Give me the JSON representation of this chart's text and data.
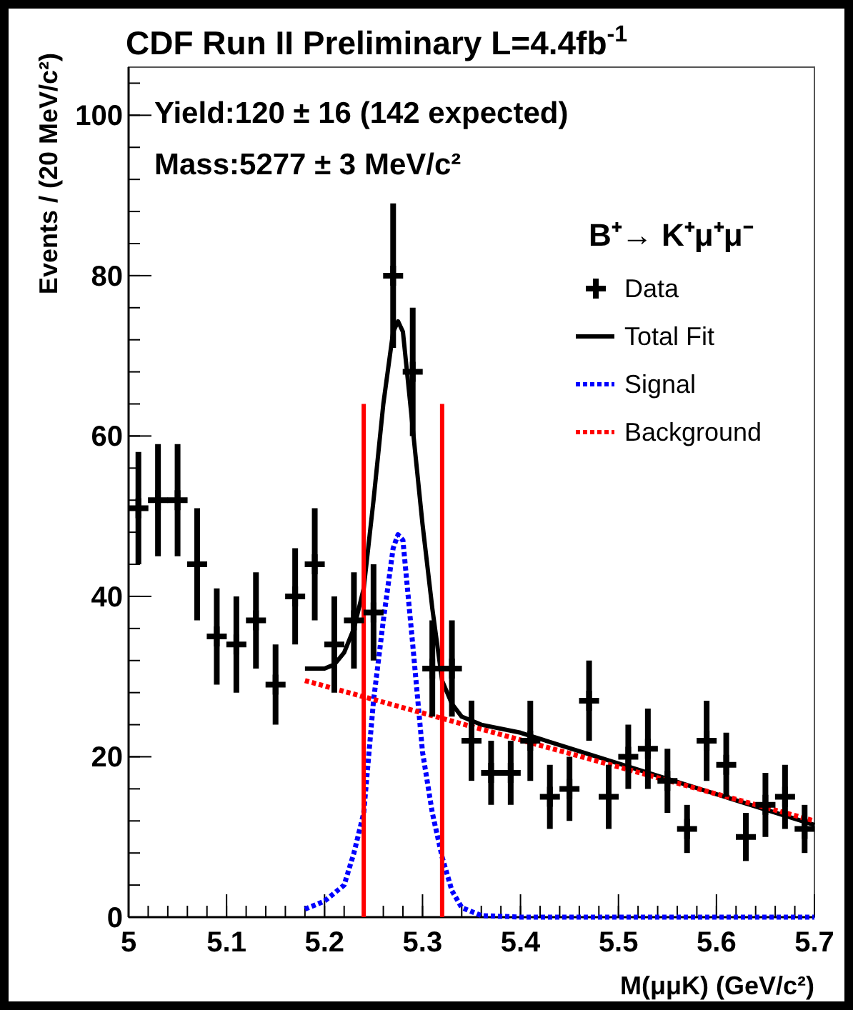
{
  "chart_data": {
    "type": "scatter",
    "title": "CDF Run II Preliminary L=4.4fb$^{-1}$",
    "xlabel": "M(μμK) (GeV/c²)",
    "ylabel": "Events / (20 MeV/c²)",
    "legend_title": "B⁺→ K⁺μ⁺μ⁻",
    "annotations": [
      "Yield:120 ± 16 (142 expected)",
      "Mass:5277 ± 3 MeV/c²"
    ],
    "xlim": [
      5,
      5.7
    ],
    "xticks": [
      5,
      5.1,
      5.2,
      5.3,
      5.4,
      5.5,
      5.6,
      5.7
    ],
    "ylim": [
      0,
      106
    ],
    "yticks": [
      0,
      20,
      40,
      60,
      80,
      100
    ],
    "grid": false,
    "legend": "top right",
    "series": [
      {
        "name": "Data",
        "color": "#000000",
        "marker": "cross",
        "x": [
          5.01,
          5.03,
          5.05,
          5.07,
          5.09,
          5.11,
          5.13,
          5.15,
          5.17,
          5.19,
          5.21,
          5.23,
          5.25,
          5.27,
          5.29,
          5.31,
          5.33,
          5.35,
          5.37,
          5.39,
          5.41,
          5.43,
          5.45,
          5.47,
          5.49,
          5.51,
          5.53,
          5.55,
          5.57,
          5.59,
          5.61,
          5.63,
          5.65,
          5.67,
          5.69
        ],
        "values": [
          51,
          52,
          52,
          44,
          35,
          34,
          37,
          29,
          40,
          44,
          34,
          37,
          38,
          80,
          68,
          31,
          31,
          22,
          18,
          18,
          22,
          15,
          16,
          27,
          15,
          20,
          21,
          17,
          11,
          22,
          19,
          10,
          14,
          15,
          11
        ],
        "errors": [
          7,
          7,
          7,
          7,
          6,
          6,
          6,
          5,
          6,
          7,
          6,
          6,
          6,
          9,
          8,
          6,
          6,
          5,
          4,
          4,
          5,
          4,
          4,
          5,
          4,
          4,
          5,
          4,
          3,
          5,
          4,
          3,
          4,
          4,
          3
        ]
      },
      {
        "name": "Total Fit",
        "type": "line",
        "color": "#000000",
        "line_style": "solid",
        "marker": "none",
        "x": [
          5.18,
          5.2,
          5.21,
          5.22,
          5.23,
          5.24,
          5.25,
          5.26,
          5.27,
          5.275,
          5.28,
          5.29,
          5.3,
          5.31,
          5.32,
          5.33,
          5.34,
          5.36,
          5.4,
          5.7
        ],
        "values": [
          31,
          31,
          31.5,
          33,
          36,
          41,
          52,
          64,
          73,
          74.3,
          73,
          61,
          49,
          38.5,
          29.5,
          26.6,
          25,
          24,
          23,
          11.5
        ]
      },
      {
        "name": "Signal",
        "type": "line",
        "color": "#0000ff",
        "line_style": "dotted",
        "marker": "none",
        "x": [
          5.18,
          5.2,
          5.22,
          5.23,
          5.24,
          5.25,
          5.26,
          5.27,
          5.275,
          5.28,
          5.29,
          5.3,
          5.31,
          5.32,
          5.33,
          5.34,
          5.36,
          5.4,
          5.7
        ],
        "values": [
          1,
          2,
          4,
          8,
          13,
          27,
          37,
          46,
          47.7,
          47,
          34,
          20.6,
          13,
          7.5,
          3.3,
          1.2,
          0.2,
          0,
          0
        ]
      },
      {
        "name": "Background",
        "type": "line",
        "color": "#ff0000",
        "line_style": "dotted",
        "marker": "none",
        "x": [
          5.18,
          5.7
        ],
        "values": [
          29.5,
          12
        ]
      },
      {
        "type": "line",
        "color": "#ff0000",
        "line_style": "solid",
        "marker": "none",
        "x": [
          5.24,
          5.24,
          5.28,
          5.32,
          5.32
        ],
        "values": [
          0,
          64,
          null,
          0,
          64
        ]
      }
    ]
  }
}
